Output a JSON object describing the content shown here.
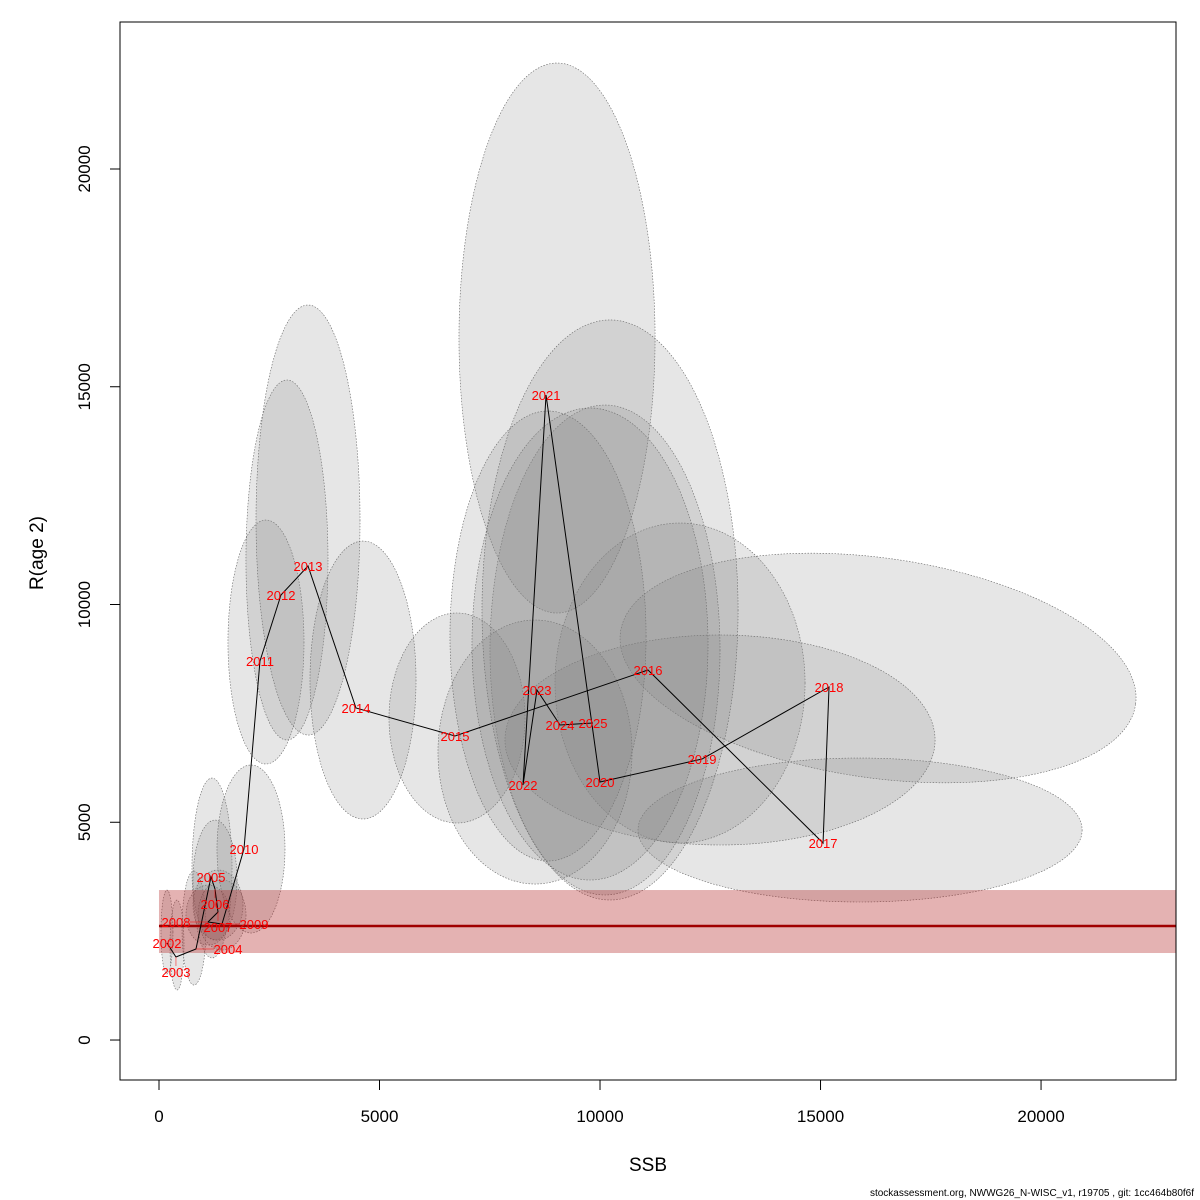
{
  "chart_data": {
    "type": "scatter",
    "xlabel": "SSB",
    "ylabel": "R(age 2)",
    "xlim": [
      -884,
      23060
    ],
    "ylim": [
      -918,
      23375
    ],
    "xticks": [
      0,
      5000,
      10000,
      15000,
      20000
    ],
    "yticks": [
      0,
      5000,
      10000,
      15000,
      20000
    ],
    "grid": false,
    "reference": {
      "value": 2618,
      "band": [
        1998,
        3444
      ],
      "line_color": "#a00000",
      "band_color": "#b22222"
    },
    "points": [
      {
        "year": "2002",
        "ssb": 181,
        "r": 2227
      },
      {
        "year": "2003",
        "ssb": 385,
        "r": 1906
      },
      {
        "year": "2004",
        "ssb": 839,
        "r": 2090
      },
      {
        "year": "2005",
        "ssb": 1179,
        "r": 3743
      },
      {
        "year": "2006",
        "ssb": 1270,
        "r": 3467
      },
      {
        "year": "2007",
        "ssb": 1338,
        "r": 2939
      },
      {
        "year": "2008",
        "ssb": 1111,
        "r": 2710
      },
      {
        "year": "2009",
        "ssb": 1429,
        "r": 2664
      },
      {
        "year": "2010",
        "ssb": 1927,
        "r": 4386
      },
      {
        "year": "2011",
        "ssb": 2290,
        "r": 8703
      },
      {
        "year": "2012",
        "ssb": 2766,
        "r": 10218
      },
      {
        "year": "2013",
        "ssb": 3379,
        "r": 10884
      },
      {
        "year": "2014",
        "ssb": 4467,
        "r": 7623
      },
      {
        "year": "2015",
        "ssb": 6712,
        "r": 6980
      },
      {
        "year": "2016",
        "ssb": 11088,
        "r": 8496
      },
      {
        "year": "2017",
        "ssb": 15057,
        "r": 4523
      },
      {
        "year": "2018",
        "ssb": 15193,
        "r": 8106
      },
      {
        "year": "2019",
        "ssb": 12313,
        "r": 6452
      },
      {
        "year": "2020",
        "ssb": 10000,
        "r": 5924
      },
      {
        "year": "2021",
        "ssb": 8776,
        "r": 14811
      },
      {
        "year": "2022",
        "ssb": 8254,
        "r": 5855
      },
      {
        "year": "2023",
        "ssb": 8571,
        "r": 8037
      },
      {
        "year": "2024",
        "ssb": 9093,
        "r": 7233
      },
      {
        "year": "2025",
        "ssb": 9841,
        "r": 7279
      }
    ],
    "confidence_ellipses": [
      {
        "year": "2002",
        "cx": 181,
        "cy": 2480,
        "sx": 136,
        "sy": 964,
        "tilt": 0
      },
      {
        "year": "2003",
        "cx": 408,
        "cy": 2181,
        "sx": 159,
        "sy": 1033,
        "tilt": 0
      },
      {
        "year": "2004",
        "cx": 794,
        "cy": 2572,
        "sx": 272,
        "sy": 1309,
        "tilt": 0
      },
      {
        "year": "2005",
        "cx": 1202,
        "cy": 3949,
        "sx": 454,
        "sy": 2066,
        "tilt": 0
      },
      {
        "year": "2006",
        "cx": 1270,
        "cy": 3673,
        "sx": 499,
        "sy": 1378,
        "tilt": 0
      },
      {
        "year": "2007",
        "cx": 1338,
        "cy": 3100,
        "sx": 567,
        "sy": 804,
        "tilt": 0
      },
      {
        "year": "2008",
        "cx": 1111,
        "cy": 2870,
        "sx": 499,
        "sy": 689,
        "tilt": 0
      },
      {
        "year": "2009",
        "cx": 1429,
        "cy": 2870,
        "sx": 544,
        "sy": 804,
        "tilt": 0
      },
      {
        "year": "2010",
        "cx": 2086,
        "cy": 4386,
        "sx": 771,
        "sy": 1929,
        "tilt": 0
      },
      {
        "year": "2011",
        "cx": 2426,
        "cy": 9139,
        "sx": 862,
        "sy": 2801,
        "tilt": 0
      },
      {
        "year": "2012",
        "cx": 2902,
        "cy": 11022,
        "sx": 930,
        "sy": 4133,
        "tilt": 0
      },
      {
        "year": "2013",
        "cx": 3379,
        "cy": 11940,
        "sx": 1179,
        "sy": 4937,
        "tilt": 0
      },
      {
        "year": "2014",
        "cx": 4626,
        "cy": 8266,
        "sx": 1202,
        "sy": 3191,
        "tilt": 0
      },
      {
        "year": "2015",
        "cx": 6757,
        "cy": 7394,
        "sx": 1542,
        "sy": 2411,
        "tilt": 0
      },
      {
        "year": "2016",
        "cx": 11814,
        "cy": 8197,
        "sx": 2835,
        "sy": 3674,
        "tilt": 0
      },
      {
        "year": "2017",
        "cx": 15896,
        "cy": 4822,
        "sx": 5035,
        "sy": 1653,
        "tilt": 0
      },
      {
        "year": "2018",
        "cx": 16304,
        "cy": 8542,
        "sx": 5897,
        "sy": 2526,
        "tilt": 8
      },
      {
        "year": "2019",
        "cx": 12721,
        "cy": 6889,
        "sx": 4876,
        "sy": 2411,
        "tilt": 0
      },
      {
        "year": "2020",
        "cx": 10113,
        "cy": 8955,
        "sx": 2608,
        "sy": 5625,
        "tilt": 0
      },
      {
        "year": "2021",
        "cx": 9025,
        "cy": 16119,
        "sx": 2223,
        "sy": 6314,
        "tilt": 0
      },
      {
        "year": "2022",
        "cx": 8526,
        "cy": 6613,
        "sx": 2200,
        "sy": 3031,
        "tilt": 0
      },
      {
        "year": "2023",
        "cx": 8821,
        "cy": 9277,
        "sx": 2223,
        "sy": 5166,
        "tilt": 0
      },
      {
        "year": "2024",
        "cx": 9773,
        "cy": 9093,
        "sx": 2676,
        "sy": 5419,
        "tilt": 0
      },
      {
        "year": "2025",
        "cx": 10227,
        "cy": 9874,
        "sx": 2903,
        "sy": 6659,
        "tilt": 0
      }
    ]
  },
  "footer": "stockassessment.org, NWWG26_N-WISC_v1, r19705 , git: 1cc464b80f6f"
}
